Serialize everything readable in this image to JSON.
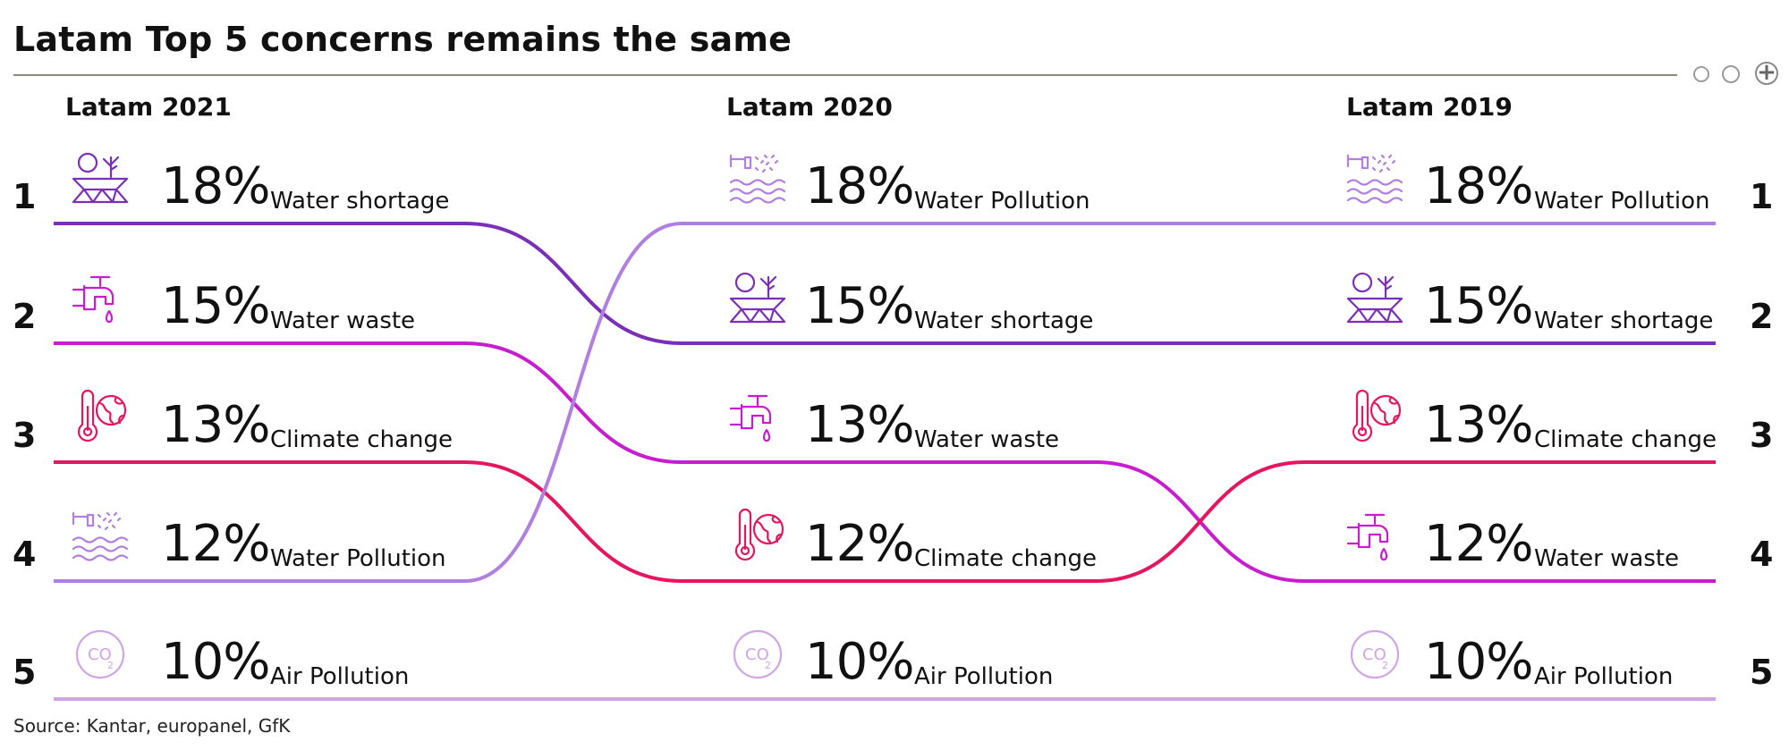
{
  "title": "Latam Top 5 concerns remains the same",
  "source": "Source: Kantar, europanel, GfK",
  "colors": {
    "Water shortage": "#7b2fb8",
    "Water waste": "#c81ccf",
    "Climate change": "#e5155f",
    "Water Pollution": "#b07fdf",
    "Air Pollution": "#cfa5e6"
  },
  "icons": {
    "Water shortage": "drought-icon",
    "Water waste": "dripping-tap-icon",
    "Climate change": "thermometer-globe-icon",
    "Water Pollution": "polluted-water-icon",
    "Air Pollution": "co2-icon"
  },
  "columns": [
    {
      "heading": "Latam 2021",
      "rows": [
        {
          "rank": "1",
          "pct": "18%",
          "label": "Water shortage"
        },
        {
          "rank": "2",
          "pct": "15%",
          "label": "Water waste"
        },
        {
          "rank": "3",
          "pct": "13%",
          "label": "Climate change"
        },
        {
          "rank": "4",
          "pct": "12%",
          "label": "Water Pollution"
        },
        {
          "rank": "5",
          "pct": "10%",
          "label": "Air Pollution"
        }
      ]
    },
    {
      "heading": "Latam 2020",
      "rows": [
        {
          "pct": "18%",
          "label": "Water Pollution"
        },
        {
          "pct": "15%",
          "label": "Water shortage"
        },
        {
          "pct": "13%",
          "label": "Water waste"
        },
        {
          "pct": "12%",
          "label": "Climate change"
        },
        {
          "pct": "10%",
          "label": "Air Pollution"
        }
      ]
    },
    {
      "heading": "Latam 2019",
      "rows": [
        {
          "rank": "1",
          "pct": "18%",
          "label": "Water Pollution"
        },
        {
          "rank": "2",
          "pct": "15%",
          "label": "Water shortage"
        },
        {
          "rank": "3",
          "pct": "13%",
          "label": "Climate change"
        },
        {
          "rank": "4",
          "pct": "12%",
          "label": "Water waste"
        },
        {
          "rank": "5",
          "pct": "10%",
          "label": "Air Pollution"
        }
      ]
    }
  ],
  "chart_data": {
    "type": "bump",
    "title": "Latam Top 5 concerns remains the same",
    "categories": [
      "Latam 2021",
      "Latam 2020",
      "Latam 2019"
    ],
    "series": [
      {
        "name": "Water shortage",
        "ranks": [
          1,
          2,
          2
        ],
        "values": [
          18,
          15,
          15
        ]
      },
      {
        "name": "Water waste",
        "ranks": [
          2,
          3,
          4
        ],
        "values": [
          15,
          13,
          12
        ]
      },
      {
        "name": "Climate change",
        "ranks": [
          3,
          4,
          3
        ],
        "values": [
          13,
          12,
          13
        ]
      },
      {
        "name": "Water Pollution",
        "ranks": [
          4,
          1,
          1
        ],
        "values": [
          12,
          18,
          18
        ]
      },
      {
        "name": "Air Pollution",
        "ranks": [
          5,
          5,
          5
        ],
        "values": [
          10,
          10,
          10
        ]
      }
    ],
    "value_unit": "%"
  }
}
